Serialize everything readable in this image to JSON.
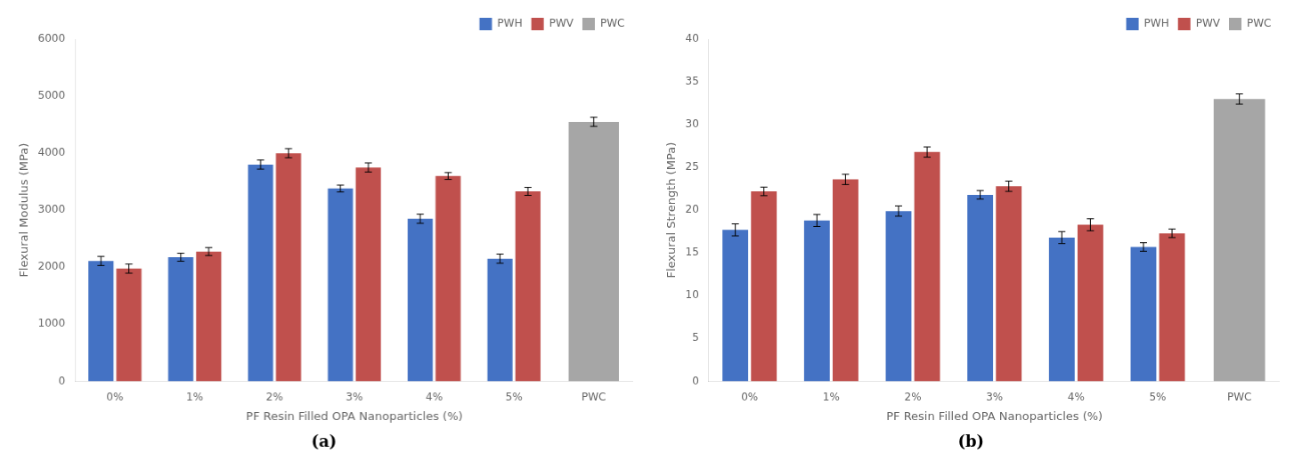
{
  "chart_data": [
    {
      "type": "bar",
      "title": "(a)",
      "xlabel": "PF Resin Filled OPA Nanoparticles (%)",
      "ylabel": "Flexural Modulus (MPa)",
      "categories": [
        "0%",
        "1%",
        "2%",
        "3%",
        "4%",
        "5%",
        "PWC"
      ],
      "series": [
        {
          "name": "PWH",
          "color": "#4472C4",
          "values": [
            2110,
            2175,
            3800,
            3380,
            2850,
            2150,
            null
          ],
          "errors": [
            80,
            70,
            80,
            60,
            80,
            80,
            null
          ]
        },
        {
          "name": "PWV",
          "color": "#C0504D",
          "values": [
            1975,
            2275,
            4000,
            3750,
            3600,
            3330,
            null
          ],
          "errors": [
            80,
            70,
            80,
            80,
            60,
            70,
            null
          ]
        },
        {
          "name": "PWC",
          "color": "#A6A6A6",
          "values": [
            null,
            null,
            null,
            null,
            null,
            null,
            4550
          ],
          "errors": [
            null,
            null,
            null,
            null,
            null,
            null,
            80
          ]
        }
      ],
      "ylim": [
        0,
        6000
      ],
      "yticks": [
        0,
        1000,
        2000,
        3000,
        4000,
        5000,
        6000
      ],
      "grid": false,
      "legend": "upper right"
    },
    {
      "type": "bar",
      "title": "(b)",
      "xlabel": "PF Resin Filled OPA Nanoparticles (%)",
      "ylabel": "Flexural Strength (MPa)",
      "categories": [
        "0%",
        "1%",
        "2%",
        "3%",
        "4%",
        "5%",
        "PWC"
      ],
      "series": [
        {
          "name": "PWH",
          "color": "#4472C4",
          "values": [
            17.7,
            18.8,
            19.9,
            21.8,
            16.8,
            15.7,
            null
          ],
          "errors": [
            0.7,
            0.7,
            0.6,
            0.5,
            0.7,
            0.5,
            null
          ]
        },
        {
          "name": "PWV",
          "color": "#C0504D",
          "values": [
            22.2,
            23.6,
            26.8,
            22.8,
            18.3,
            17.3,
            null
          ],
          "errors": [
            0.5,
            0.6,
            0.6,
            0.6,
            0.7,
            0.5,
            null
          ]
        },
        {
          "name": "PWC",
          "color": "#A6A6A6",
          "values": [
            null,
            null,
            null,
            null,
            null,
            null,
            33.0
          ],
          "errors": [
            null,
            null,
            null,
            null,
            null,
            null,
            0.6
          ]
        }
      ],
      "ylim": [
        0,
        40
      ],
      "yticks": [
        0,
        5,
        10,
        15,
        20,
        25,
        30,
        35,
        40
      ],
      "grid": false,
      "legend": "upper right"
    }
  ]
}
